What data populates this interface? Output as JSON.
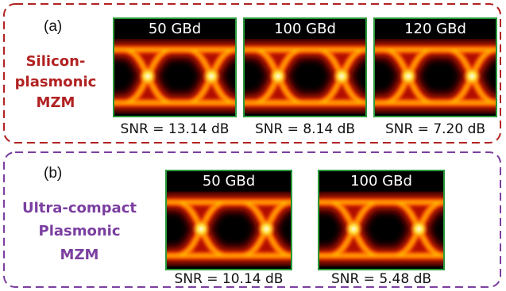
{
  "panels": [
    {
      "label": "(a)",
      "device": [
        "Silicon-",
        "plasmonic",
        "MZM"
      ],
      "eyes": [
        {
          "rate": "50 GBd",
          "snr": "SNR = 13.14 dB"
        },
        {
          "rate": "100 GBd",
          "snr": "SNR = 8.14 dB"
        },
        {
          "rate": "120 GBd",
          "snr": "SNR = 7.20 dB"
        }
      ]
    },
    {
      "label": "(b)",
      "device": [
        "Ultra-compact",
        "Plasmonic",
        "MZM"
      ],
      "eyes": [
        {
          "rate": "50 GBd",
          "snr": "SNR = 10.14 dB"
        },
        {
          "rate": "100 GBd",
          "snr": "SNR = 5.48 dB"
        }
      ]
    }
  ]
}
